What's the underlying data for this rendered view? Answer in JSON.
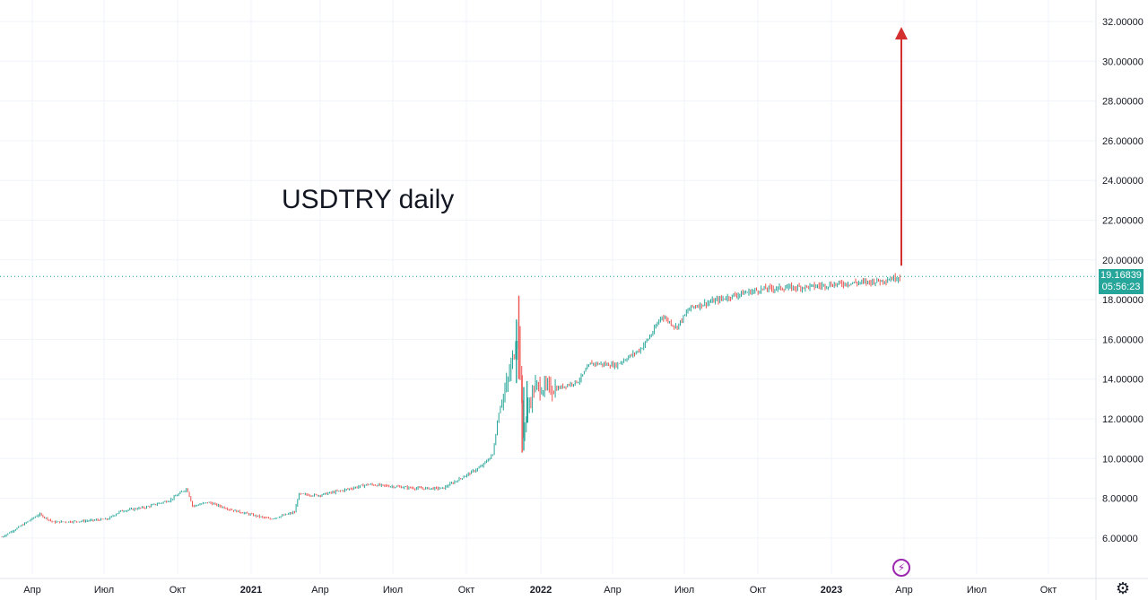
{
  "chart_data": {
    "type": "candlestick",
    "title": "USDTRY daily",
    "y_axis": {
      "side": "right",
      "range": [
        4.5,
        32.6
      ],
      "ticks": [
        "6.00000",
        "8.00000",
        "10.00000",
        "12.00000",
        "14.00000",
        "16.00000",
        "18.00000",
        "20.00000",
        "22.00000",
        "24.00000",
        "26.00000",
        "28.00000",
        "30.00000",
        "32.00000"
      ]
    },
    "x_axis": {
      "ticks": [
        {
          "label": "Апр",
          "bold": false
        },
        {
          "label": "Июл",
          "bold": false
        },
        {
          "label": "Окт",
          "bold": false
        },
        {
          "label": "2021",
          "bold": true
        },
        {
          "label": "Апр",
          "bold": false
        },
        {
          "label": "Июл",
          "bold": false
        },
        {
          "label": "Окт",
          "bold": false
        },
        {
          "label": "2022",
          "bold": true
        },
        {
          "label": "Апр",
          "bold": false
        },
        {
          "label": "Июл",
          "bold": false
        },
        {
          "label": "Окт",
          "bold": false
        },
        {
          "label": "2023",
          "bold": true
        },
        {
          "label": "Апр",
          "bold": false
        },
        {
          "label": "Июл",
          "bold": false
        },
        {
          "label": "Окт",
          "bold": false
        }
      ]
    },
    "series": [
      {
        "kind": "close",
        "points": [
          [
            "2020-03-23",
            6.05
          ],
          [
            "2020-04-15",
            6.6
          ],
          [
            "2020-05-08",
            7.2
          ],
          [
            "2020-05-25",
            6.8
          ],
          [
            "2020-06-30",
            6.85
          ],
          [
            "2020-07-31",
            6.95
          ],
          [
            "2020-08-15",
            7.35
          ],
          [
            "2020-09-15",
            7.55
          ],
          [
            "2020-10-15",
            7.9
          ],
          [
            "2020-11-05",
            8.5
          ],
          [
            "2020-11-12",
            7.6
          ],
          [
            "2020-12-01",
            7.8
          ],
          [
            "2020-12-31",
            7.4
          ],
          [
            "2021-02-15",
            6.95
          ],
          [
            "2021-03-17",
            7.3
          ],
          [
            "2021-03-22",
            8.2
          ],
          [
            "2021-04-15",
            8.15
          ],
          [
            "2021-05-15",
            8.4
          ],
          [
            "2021-06-15",
            8.7
          ],
          [
            "2021-07-15",
            8.6
          ],
          [
            "2021-08-15",
            8.5
          ],
          [
            "2021-09-15",
            8.5
          ],
          [
            "2021-10-15",
            9.2
          ],
          [
            "2021-11-01",
            9.6
          ],
          [
            "2021-11-15",
            10.2
          ],
          [
            "2021-11-23",
            12.5
          ],
          [
            "2021-12-03",
            13.8
          ],
          [
            "2021-12-17",
            16.5
          ],
          [
            "2021-12-20",
            13.0
          ],
          [
            "2021-12-22",
            11.2
          ],
          [
            "2021-12-28",
            12.5
          ],
          [
            "2022-01-05",
            13.6
          ],
          [
            "2022-01-31",
            13.5
          ],
          [
            "2022-02-28",
            13.9
          ],
          [
            "2022-03-15",
            14.8
          ],
          [
            "2022-04-15",
            14.7
          ],
          [
            "2022-05-15",
            15.5
          ],
          [
            "2022-05-31",
            16.4
          ],
          [
            "2022-06-10",
            17.2
          ],
          [
            "2022-06-28",
            16.6
          ],
          [
            "2022-07-15",
            17.6
          ],
          [
            "2022-08-15",
            17.95
          ],
          [
            "2022-09-15",
            18.3
          ],
          [
            "2022-10-15",
            18.55
          ],
          [
            "2022-11-15",
            18.6
          ],
          [
            "2022-12-15",
            18.67
          ],
          [
            "2023-01-15",
            18.8
          ],
          [
            "2023-02-15",
            18.88
          ],
          [
            "2023-03-09",
            18.97
          ],
          [
            "2023-03-31",
            19.17
          ]
        ]
      }
    ],
    "last_price": "19.16839",
    "countdown": "05:56:23",
    "annotation": "red arrow pointing up from last price toward 32.00000",
    "colors": {
      "up": "#26a69a",
      "down": "#ef5350",
      "arrow": "#d32f2f",
      "price_line": "#26a69a"
    },
    "grid": true
  },
  "icons": {
    "flash": "lightning-icon",
    "settings": "gear-icon"
  }
}
